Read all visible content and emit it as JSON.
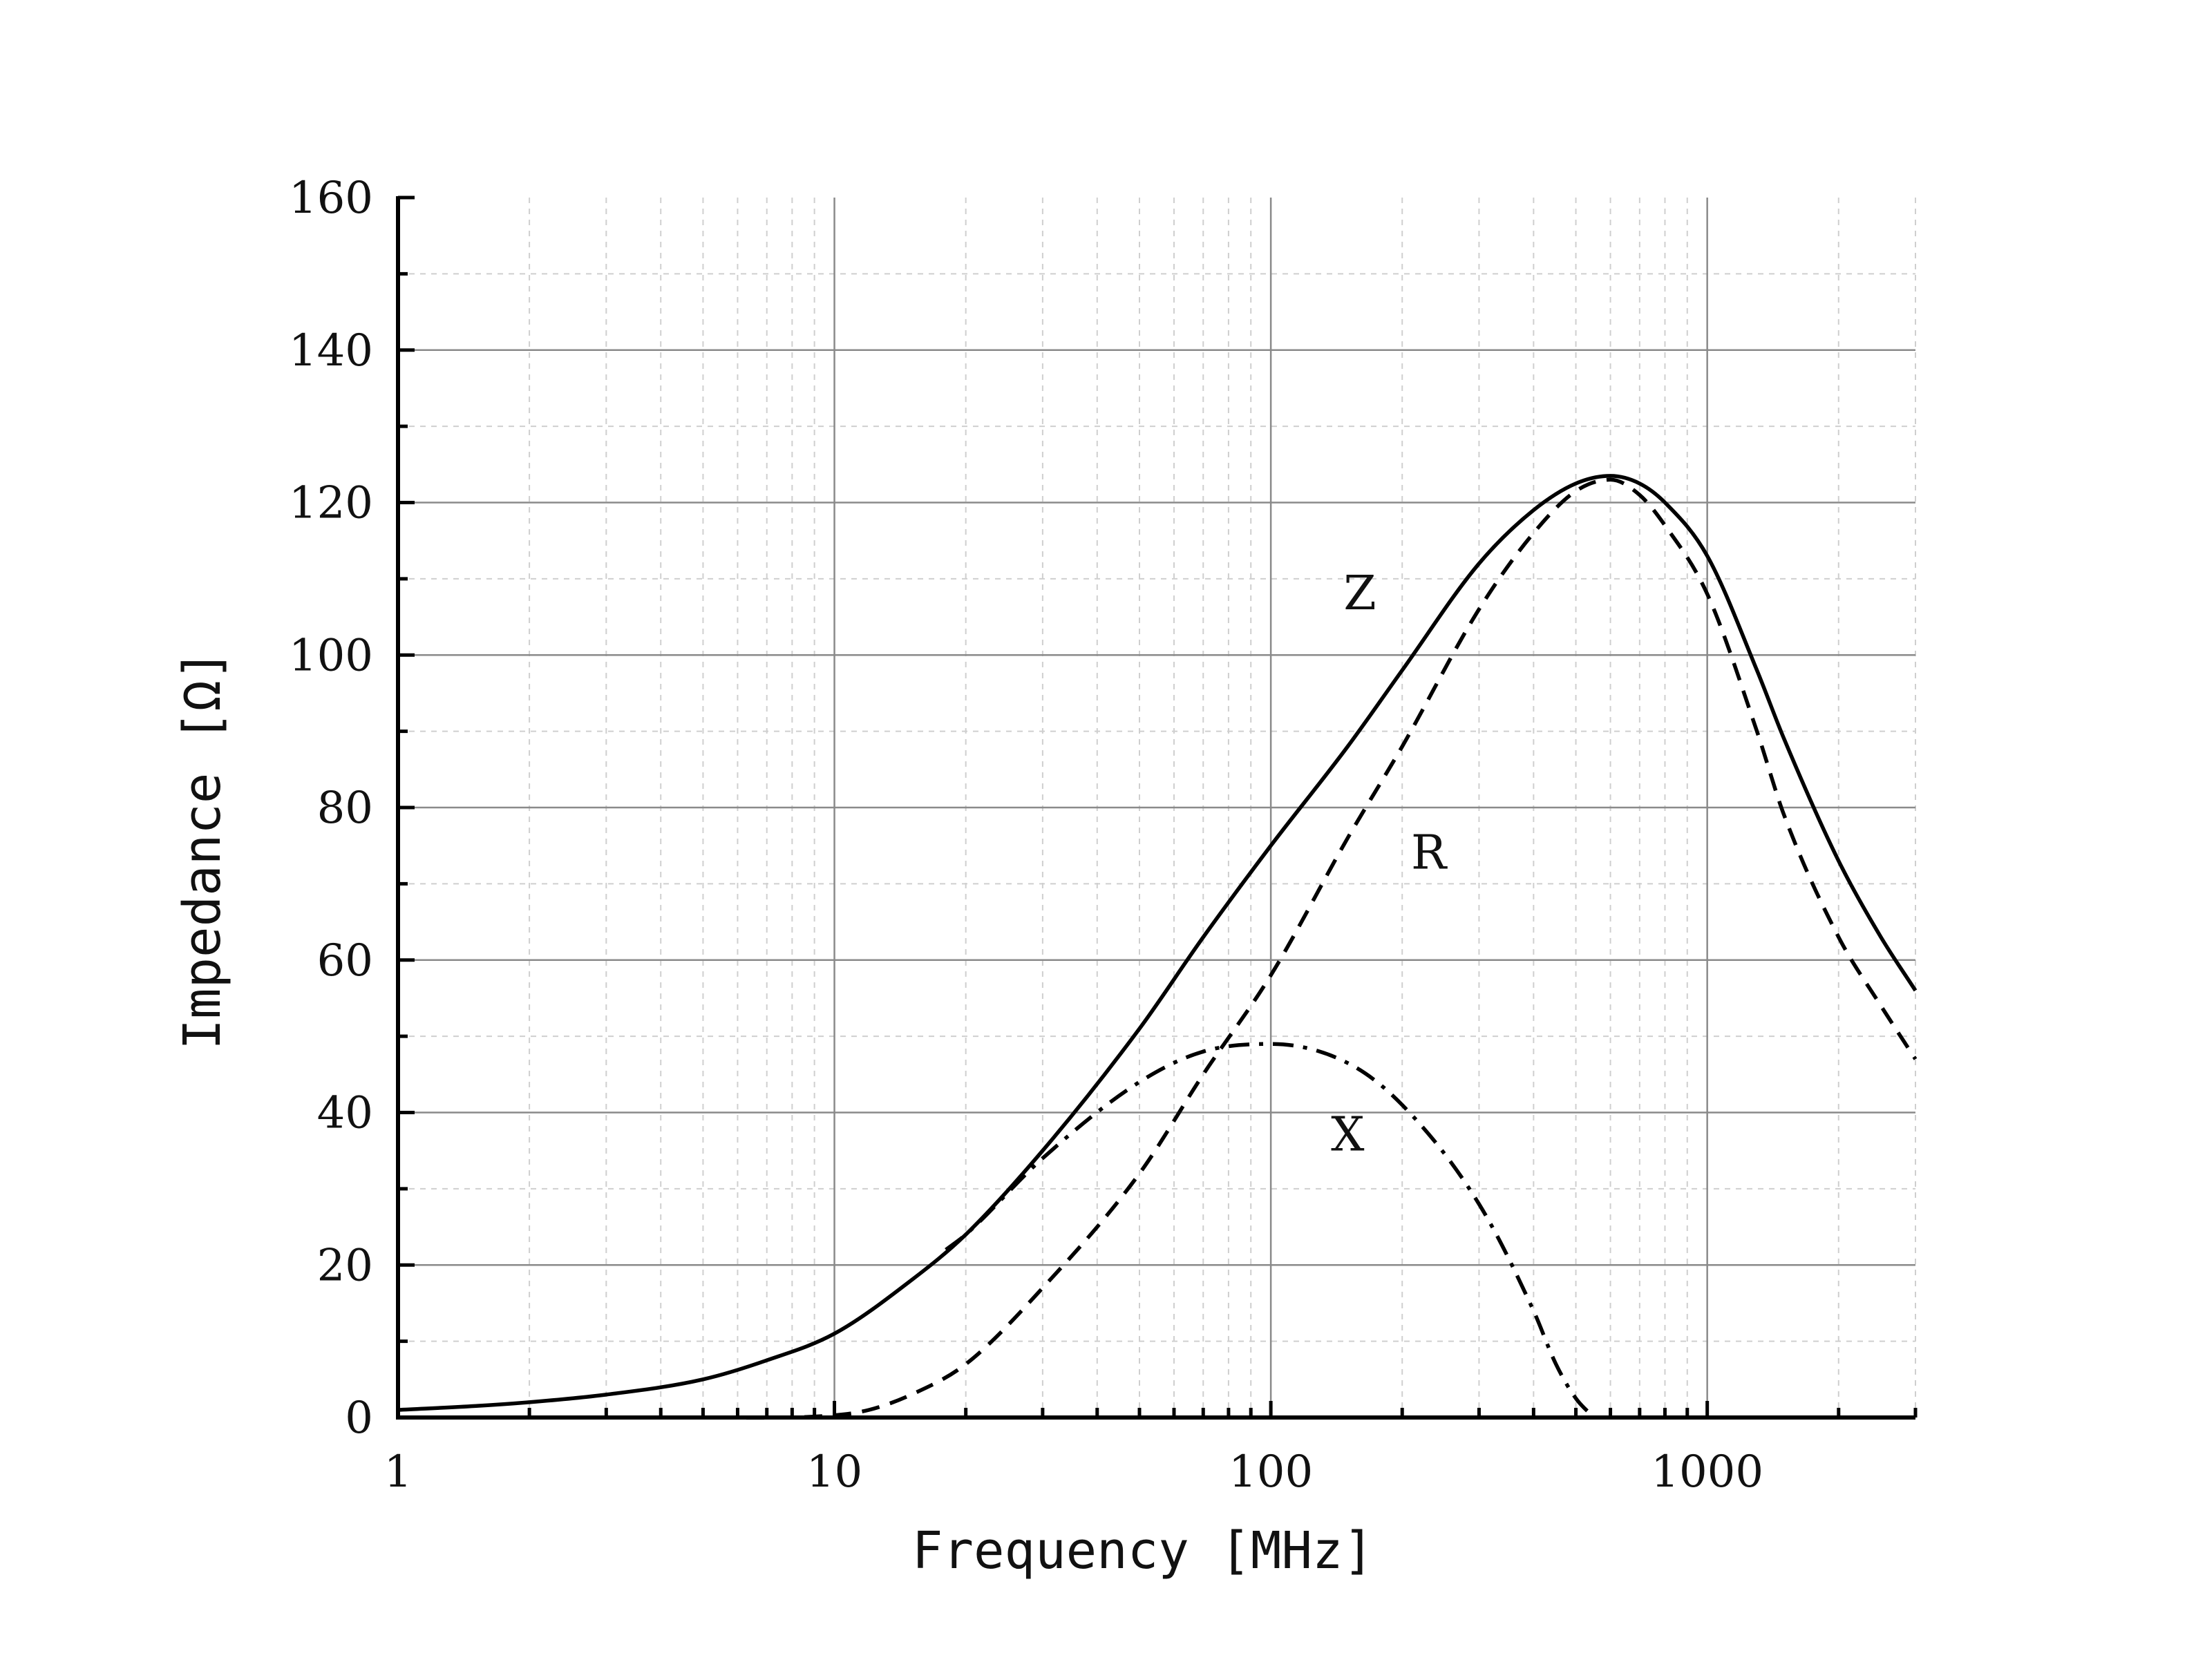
{
  "chart_data": {
    "type": "line",
    "x_scale": "log",
    "xlabel": "Frequency [MHz]",
    "ylabel": "Impedance [Ω]",
    "xlim": [
      1,
      3000
    ],
    "ylim": [
      0,
      160
    ],
    "x_ticks": [
      1,
      10,
      100,
      1000
    ],
    "x_tick_labels": [
      "1",
      "10",
      "100",
      "1000"
    ],
    "y_ticks": [
      0,
      20,
      40,
      60,
      80,
      100,
      120,
      140,
      160
    ],
    "y_tick_labels": [
      "0",
      "20",
      "40",
      "60",
      "80",
      "100",
      "120",
      "140",
      "160"
    ],
    "grid": true,
    "series": [
      {
        "name": "Z",
        "style": "solid",
        "x": [
          1,
          1.5,
          2,
          3,
          5,
          7,
          10,
          15,
          20,
          30,
          50,
          70,
          100,
          150,
          200,
          300,
          400,
          500,
          600,
          700,
          800,
          1000,
          1300,
          1500,
          2000,
          2500,
          3000
        ],
        "y": [
          1,
          1.5,
          2,
          3,
          5,
          7.5,
          11,
          18,
          24,
          35,
          51,
          63,
          75,
          88,
          98,
          112,
          119,
          122.5,
          123.5,
          122.5,
          120,
          113,
          98,
          89,
          73,
          63,
          56
        ]
      },
      {
        "name": "R",
        "style": "dashed",
        "x": [
          1,
          5,
          10,
          12,
          15,
          20,
          30,
          50,
          70,
          100,
          150,
          200,
          300,
          400,
          500,
          600,
          700,
          800,
          1000,
          1300,
          1500,
          2000,
          2500,
          3000
        ],
        "y": [
          0,
          0,
          0.3,
          1,
          3,
          7,
          17,
          32,
          45,
          58,
          76,
          88,
          106,
          116,
          121.5,
          123,
          121,
          117,
          108,
          90,
          79,
          63,
          54,
          47
        ]
      },
      {
        "name": "X",
        "style": "dashdot",
        "x": [
          18,
          20,
          30,
          50,
          70,
          100,
          150,
          200,
          300,
          400,
          450,
          500,
          550
        ],
        "y": [
          22,
          24,
          34,
          44,
          48,
          49,
          46.5,
          41,
          28,
          14,
          7,
          2.5,
          0
        ]
      }
    ],
    "annotations": [
      {
        "text": "Z",
        "x": 160,
        "y": 106
      },
      {
        "text": "R",
        "x": 230,
        "y": 72
      },
      {
        "text": "X",
        "x": 150,
        "y": 35
      }
    ]
  }
}
